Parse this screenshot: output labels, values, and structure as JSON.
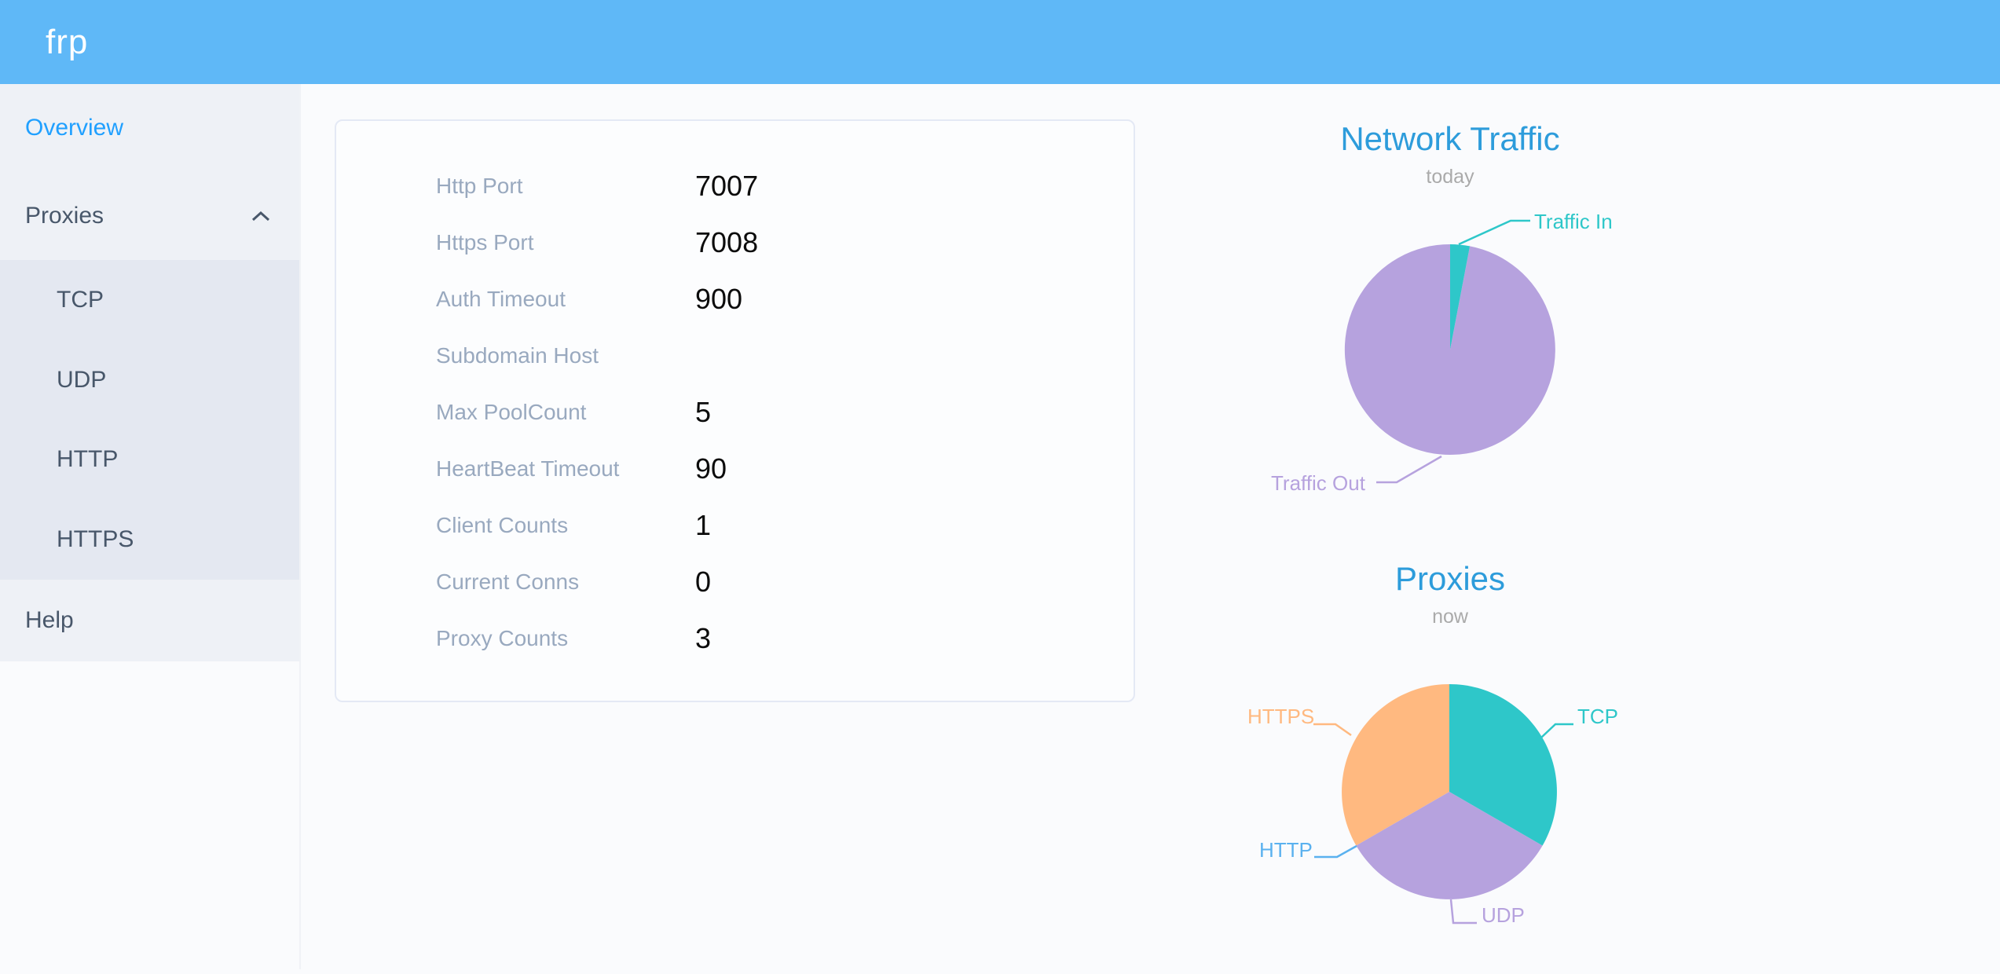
{
  "header": {
    "logo": "frp"
  },
  "sidebar": {
    "items": [
      {
        "label": "Overview",
        "active": true
      },
      {
        "label": "Proxies",
        "expanded": true,
        "children": [
          "TCP",
          "UDP",
          "HTTP",
          "HTTPS"
        ]
      },
      {
        "label": "Help"
      }
    ]
  },
  "overview_card": {
    "rows": [
      {
        "label": "Http Port",
        "value": "7007"
      },
      {
        "label": "Https Port",
        "value": "7008"
      },
      {
        "label": "Auth Timeout",
        "value": "900"
      },
      {
        "label": "Subdomain Host",
        "value": ""
      },
      {
        "label": "Max PoolCount",
        "value": "5"
      },
      {
        "label": "HeartBeat Timeout",
        "value": "90"
      },
      {
        "label": "Client Counts",
        "value": "1"
      },
      {
        "label": "Current Conns",
        "value": "0"
      },
      {
        "label": "Proxy Counts",
        "value": "3"
      }
    ]
  },
  "chart_data": [
    {
      "type": "pie",
      "title": "Network Traffic",
      "subtitle": "today",
      "series": [
        {
          "name": "Traffic In",
          "value": 3,
          "color": "#2ec7c9"
        },
        {
          "name": "Traffic Out",
          "value": 97,
          "color": "#b6a2de"
        }
      ],
      "values_unit": "percent, estimated from slice angles",
      "legend_position": "callout-labels"
    },
    {
      "type": "pie",
      "title": "Proxies",
      "subtitle": "now",
      "series": [
        {
          "name": "TCP",
          "value": 1,
          "color": "#2ec7c9"
        },
        {
          "name": "UDP",
          "value": 1,
          "color": "#b6a2de"
        },
        {
          "name": "HTTP",
          "value": 0,
          "color": "#5ab1ef"
        },
        {
          "name": "HTTPS",
          "value": 1,
          "color": "#ffb980"
        }
      ],
      "values_unit": "proxy count",
      "legend_position": "callout-labels"
    }
  ],
  "colors": {
    "header_bg": "#5fb8f7",
    "logo_text": "#ffffff",
    "sidebar_menu_bg": "#eef1f6",
    "submenu_bg": "#e4e8f1",
    "sidebar_text": "#48576a",
    "active_item": "#20a0ff",
    "chevron": "#48576a",
    "card_label_gray": "#99a9bf",
    "card_value": "#0c0c0c",
    "chart_title_blue": "#2d9cdb",
    "chart_subtitle_gray": "#aaaaaa"
  }
}
